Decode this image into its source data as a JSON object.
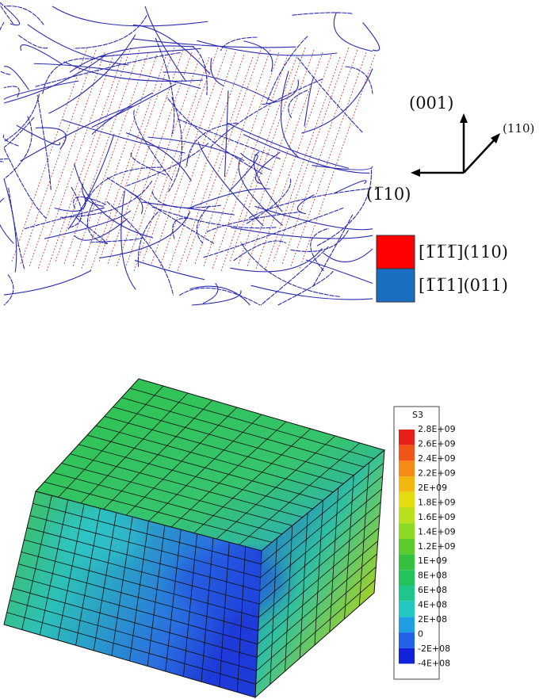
{
  "axes": {
    "up": "(001)",
    "diagonal": "(110)",
    "left": "(1̅10)"
  },
  "legend": [
    {
      "label": "[1̅1̅1̅](110)",
      "color": "#ff0000"
    },
    {
      "label": "[1̅1̅1](011)",
      "color": "#1a6fc0"
    }
  ],
  "colorbar": {
    "title": "S3",
    "labels": [
      "2.8E+09",
      "2.6E+09",
      "2.4E+09",
      "2.2E+09",
      "2E+09",
      "1.8E+09",
      "1.6E+09",
      "1.4E+09",
      "1.2E+09",
      "1E+09",
      "8E+08",
      "6E+08",
      "4E+08",
      "2E+08",
      "0",
      "-2E+08",
      "-4E+08"
    ],
    "colors": [
      "#e8201a",
      "#ef5618",
      "#f48a18",
      "#f2b810",
      "#e2dc10",
      "#b8e01c",
      "#8cd822",
      "#5ccc2c",
      "#34c23e",
      "#22c25c",
      "#1fc68c",
      "#22c8c0",
      "#209ee2",
      "#2262e8",
      "#1222dc"
    ]
  }
}
